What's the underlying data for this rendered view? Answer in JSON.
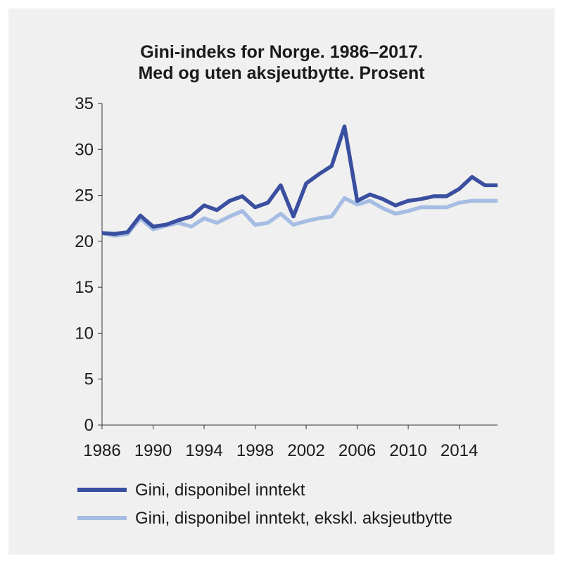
{
  "chart_data": {
    "type": "line",
    "title_lines": [
      "Gini-indeks for Norge. 1986–2017.",
      "Med og uten aksjeutbytte. Prosent"
    ],
    "xlabel": "",
    "ylabel": "",
    "xlim": [
      1986,
      2017
    ],
    "ylim": [
      0,
      35
    ],
    "y_ticks": [
      0,
      5,
      10,
      15,
      20,
      25,
      30,
      35
    ],
    "x_ticks": [
      1986,
      1990,
      1994,
      1998,
      2002,
      2006,
      2010,
      2014
    ],
    "grid": false,
    "legend_position": "bottom",
    "x": [
      1986,
      1987,
      1988,
      1989,
      1990,
      1991,
      1992,
      1993,
      1994,
      1995,
      1996,
      1997,
      1998,
      1999,
      2000,
      2001,
      2002,
      2003,
      2004,
      2005,
      2006,
      2007,
      2008,
      2009,
      2010,
      2011,
      2012,
      2013,
      2014,
      2015,
      2016,
      2017
    ],
    "series": [
      {
        "name": "Gini, disponibel inntekt",
        "color": "#3a4fa0",
        "values": [
          20.9,
          20.8,
          21.0,
          22.8,
          21.6,
          21.8,
          22.3,
          22.7,
          23.9,
          23.4,
          24.4,
          24.9,
          23.7,
          24.2,
          26.1,
          22.7,
          26.3,
          27.3,
          28.2,
          32.5,
          24.4,
          25.1,
          24.6,
          23.9,
          24.4,
          24.6,
          24.9,
          24.9,
          25.7,
          27.0,
          26.1,
          26.1
        ]
      },
      {
        "name": "Gini, disponibel inntekt, ekskl. aksjeutbytte",
        "color": "#a6bde3",
        "values": [
          20.9,
          20.6,
          20.8,
          22.5,
          21.3,
          21.7,
          22.0,
          21.6,
          22.5,
          22.0,
          22.7,
          23.3,
          21.8,
          22.0,
          23.0,
          21.8,
          22.2,
          22.5,
          22.7,
          24.7,
          24.0,
          24.4,
          23.6,
          23.0,
          23.3,
          23.7,
          23.7,
          23.7,
          24.2,
          24.4,
          24.4,
          24.4
        ]
      }
    ]
  }
}
